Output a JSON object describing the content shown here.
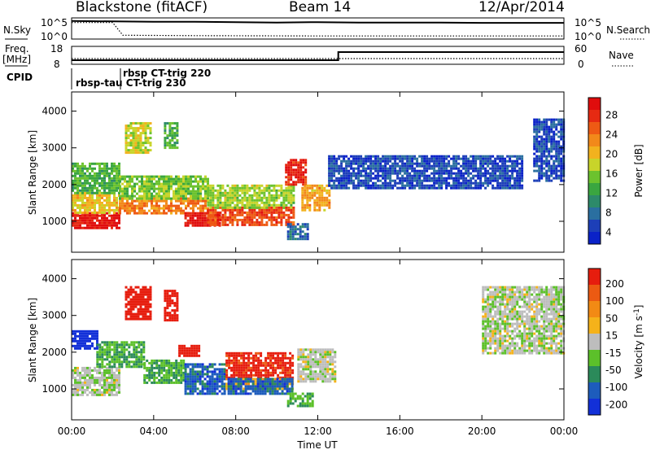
{
  "header": {
    "radar": "Blackstone (fitACF)",
    "beam": "Beam 14",
    "date": "12/Apr/2014"
  },
  "top_panels": {
    "nsky_label": "N.Sky",
    "nsky_ticks": [
      "10^5",
      "10^0"
    ],
    "nsearch_label": "N.Search",
    "nsearch_ticks": [
      "10^5",
      "10^0"
    ],
    "freq_label": "Freq.",
    "freq_unit": "[MHz]",
    "freq_ticks": [
      "18",
      "8"
    ],
    "nave_label": "Nave",
    "nave_ticks": [
      "60",
      "0"
    ],
    "cpid_label": "CPID",
    "cpid_entries": [
      "rbsp-tau CT-trig 230",
      "rbsp CT-trig 220"
    ]
  },
  "power_colorbar": {
    "label": "Power [dB]",
    "ticks": [
      "28",
      "24",
      "20",
      "16",
      "12",
      "8",
      "4"
    ],
    "colors": [
      "#0a22c8",
      "#1d3fb8",
      "#2a6fa0",
      "#2d8a6a",
      "#3aa640",
      "#6cc22e",
      "#c8d42a",
      "#f2b21e",
      "#f2891a",
      "#ee5a14",
      "#e62a12",
      "#e00d0d"
    ]
  },
  "velocity_colorbar": {
    "label": "Velocity [m s^-1]",
    "ticks": [
      "200",
      "100",
      "50",
      "15",
      "-15",
      "-50",
      "-100",
      "-200"
    ],
    "colors": [
      "#1230d8",
      "#1d5cbc",
      "#2b8a5a",
      "#5cc02a",
      "#bdbdbd",
      "#f5b21a",
      "#f28a14",
      "#ec5a12",
      "#e61d0e"
    ]
  },
  "x_axis": {
    "label": "Time UT",
    "ticks": [
      "00:00",
      "04:00",
      "08:00",
      "12:00",
      "16:00",
      "20:00",
      "00:00"
    ]
  },
  "y_axis": {
    "label": "Slant Range [km]",
    "ticks": [
      "4000",
      "3000",
      "2000",
      "1000"
    ]
  },
  "chart_data": [
    {
      "type": "line",
      "title": "N.Sky / N.Search",
      "x_unit": "hours UT",
      "series": [
        {
          "name": "N.Sky",
          "x": [
            0,
            2,
            4,
            6,
            8,
            10,
            12,
            14,
            16,
            18,
            20,
            22,
            24
          ],
          "y_log10": [
            4.6,
            4.5,
            4.4,
            4.4,
            4.3,
            4.2,
            4.3,
            4.2,
            4.2,
            4.2,
            4.1,
            4.1,
            4.1
          ]
        },
        {
          "name": "N.Search",
          "x": [
            0,
            2,
            2.5,
            6,
            12,
            18,
            24
          ],
          "y_log10": [
            4.2,
            4.2,
            0.8,
            0.7,
            0.6,
            0.6,
            0.6
          ]
        }
      ]
    },
    {
      "type": "line",
      "title": "Freq. / Nave",
      "x_unit": "hours UT",
      "series": [
        {
          "name": "Freq.",
          "x": [
            0,
            13,
            13,
            24
          ],
          "y": [
            10,
            10,
            15,
            15
          ],
          "ylim": [
            8,
            18
          ],
          "unit": "MHz"
        },
        {
          "name": "Nave",
          "x": [
            0,
            12,
            24
          ],
          "y": [
            18,
            18,
            18
          ],
          "ylim": [
            0,
            60
          ]
        }
      ]
    },
    {
      "type": "heatmap",
      "title": "Power [dB]",
      "xlabel": "Time UT",
      "ylabel": "Slant Range [km]",
      "xlim": [
        0,
        24
      ],
      "ylim": [
        180,
        4500
      ],
      "clim": [
        0,
        30
      ],
      "patches": [
        {
          "t": [
            0.0,
            2.3
          ],
          "r": [
            850,
            1250
          ],
          "power": 28
        },
        {
          "t": [
            0.0,
            2.3
          ],
          "r": [
            1250,
            1800
          ],
          "power": 18
        },
        {
          "t": [
            0.0,
            2.3
          ],
          "r": [
            1800,
            2600
          ],
          "power": 12
        },
        {
          "t": [
            2.3,
            6.6
          ],
          "r": [
            1250,
            1650
          ],
          "power": 22
        },
        {
          "t": [
            2.3,
            6.6
          ],
          "r": [
            1650,
            2250
          ],
          "power": 14
        },
        {
          "t": [
            5.5,
            7.2
          ],
          "r": [
            900,
            1250
          ],
          "power": 28
        },
        {
          "t": [
            6.6,
            10.8
          ],
          "r": [
            900,
            1400
          ],
          "power": 25
        },
        {
          "t": [
            6.6,
            10.8
          ],
          "r": [
            1400,
            2000
          ],
          "power": 15
        },
        {
          "t": [
            10.4,
            11.4
          ],
          "r": [
            2000,
            2700
          ],
          "power": 27
        },
        {
          "t": [
            11.2,
            12.6
          ],
          "r": [
            1300,
            2000
          ],
          "power": 20
        },
        {
          "t": [
            2.6,
            3.8
          ],
          "r": [
            2900,
            3700
          ],
          "power": 16
        },
        {
          "t": [
            4.5,
            5.2
          ],
          "r": [
            3000,
            3700
          ],
          "power": 12
        },
        {
          "t": [
            10.5,
            11.5
          ],
          "r": [
            550,
            950
          ],
          "power": 6
        },
        {
          "t": [
            12.5,
            22.0
          ],
          "r": [
            1900,
            2800
          ],
          "power": 4
        },
        {
          "t": [
            22.5,
            24.0
          ],
          "r": [
            2100,
            3800
          ],
          "power": 4
        }
      ]
    },
    {
      "type": "heatmap",
      "title": "Velocity [m s^-1]",
      "xlabel": "Time UT",
      "ylabel": "Slant Range [km]",
      "xlim": [
        0,
        24
      ],
      "ylim": [
        180,
        4500
      ],
      "clim": [
        -200,
        200
      ],
      "patches": [
        {
          "t": [
            0.0,
            2.3
          ],
          "r": [
            850,
            1600
          ],
          "velocity": -10
        },
        {
          "t": [
            0.0,
            1.2
          ],
          "r": [
            2100,
            2600
          ],
          "velocity": -200
        },
        {
          "t": [
            1.2,
            3.5
          ],
          "r": [
            1600,
            2300
          ],
          "velocity": -60
        },
        {
          "t": [
            3.5,
            5.5
          ],
          "r": [
            1200,
            1800
          ],
          "velocity": -60
        },
        {
          "t": [
            5.5,
            7.5
          ],
          "r": [
            900,
            1700
          ],
          "velocity": -130
        },
        {
          "t": [
            5.2,
            6.2
          ],
          "r": [
            1900,
            2200
          ],
          "velocity": 200
        },
        {
          "t": [
            7.5,
            10.8
          ],
          "r": [
            1300,
            2000
          ],
          "velocity": 180
        },
        {
          "t": [
            7.5,
            10.8
          ],
          "r": [
            1000,
            1300
          ],
          "velocity": 60
        },
        {
          "t": [
            7.6,
            10.8
          ],
          "r": [
            900,
            1300
          ],
          "velocity": -130
        },
        {
          "t": [
            11.0,
            12.8
          ],
          "r": [
            1200,
            2100
          ],
          "velocity": -5
        },
        {
          "t": [
            2.6,
            3.8
          ],
          "r": [
            2900,
            3800
          ],
          "velocity": 200
        },
        {
          "t": [
            4.5,
            5.2
          ],
          "r": [
            2900,
            3700
          ],
          "velocity": 200
        },
        {
          "t": [
            10.5,
            11.7
          ],
          "r": [
            550,
            900
          ],
          "velocity": -60
        },
        {
          "t": [
            20.0,
            24.0
          ],
          "r": [
            2000,
            3800
          ],
          "velocity": -5
        }
      ]
    }
  ]
}
